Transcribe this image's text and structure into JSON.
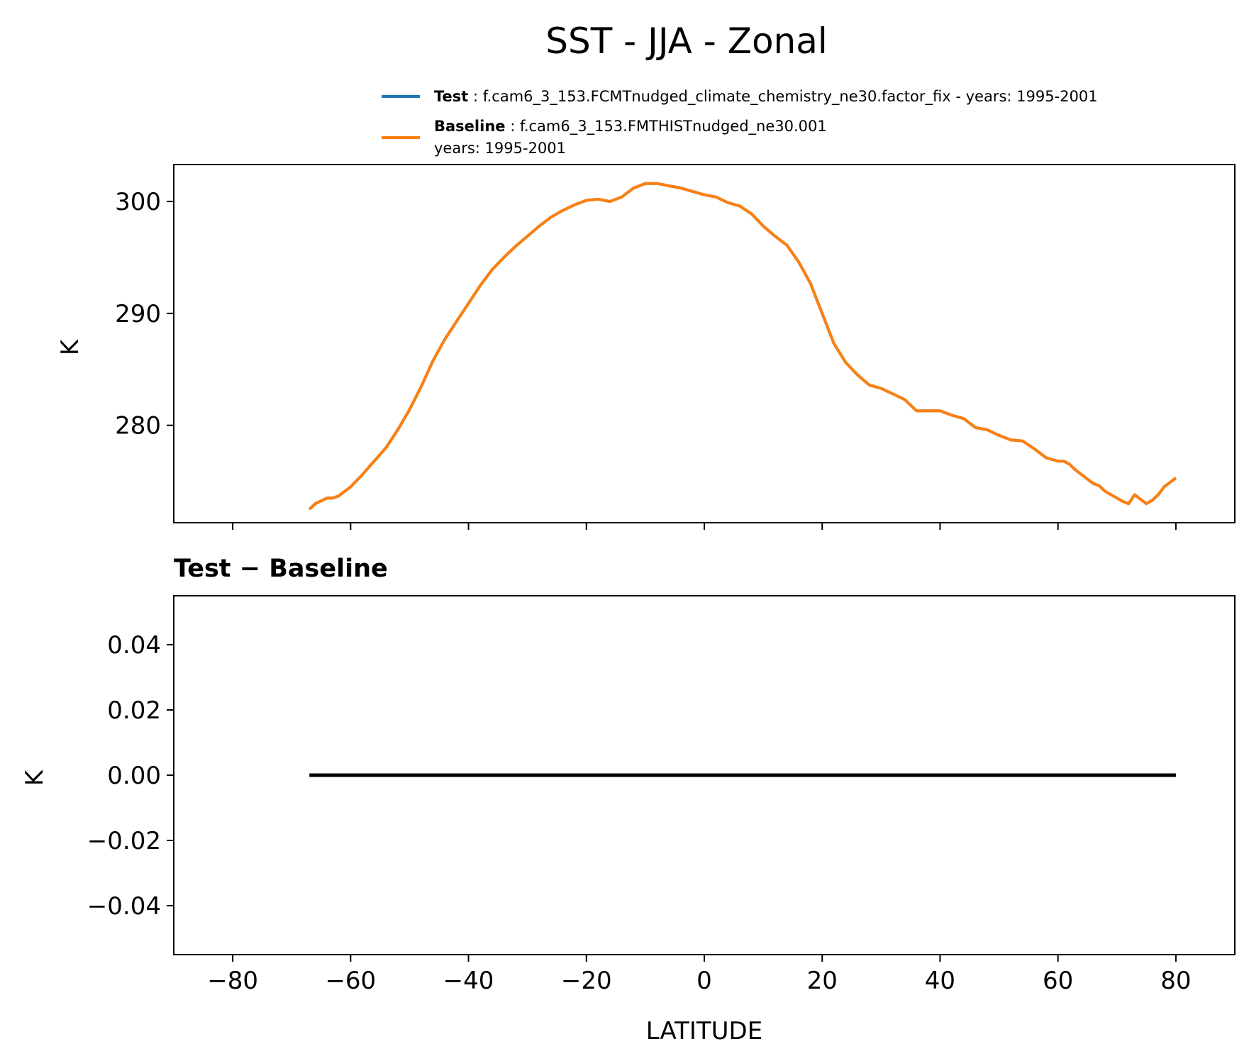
{
  "figure": {
    "title": "SST - JJA - Zonal"
  },
  "legend": {
    "test": {
      "label": "Test",
      "text": "f.cam6_3_153.FCMTnudged_climate_chemistry_ne30.factor_fix - years: 1995-2001",
      "color": "#1f77b4"
    },
    "baseline": {
      "label": "Baseline",
      "text_line1": "f.cam6_3_153.FMTHISTnudged_ne30.001",
      "text_line2": "years: 1995-2001",
      "color": "#ff7f0e"
    }
  },
  "chart_data": [
    {
      "type": "line",
      "title": "",
      "xlabel": "",
      "ylabel": "K",
      "xlim": [
        -90,
        90
      ],
      "ylim": [
        271.3,
        303.3
      ],
      "xticks": [
        -80,
        -60,
        -40,
        -20,
        0,
        20,
        40,
        60,
        80
      ],
      "yticks": [
        280,
        290,
        300
      ],
      "ytick_labels": [
        "280",
        "290",
        "300"
      ],
      "series": [
        {
          "name": "Test",
          "color": "#1f77b4",
          "x": [
            -67,
            -66,
            -64,
            -63,
            -62,
            -60,
            -58,
            -56,
            -54,
            -52,
            -50,
            -48,
            -46,
            -44,
            -42,
            -40,
            -38,
            -36,
            -34,
            -32,
            -30,
            -28,
            -26,
            -24,
            -22,
            -20,
            -18,
            -16,
            -14,
            -12,
            -10,
            -8,
            -6,
            -4,
            -2,
            0,
            2,
            4,
            6,
            8,
            10,
            12,
            14,
            16,
            18,
            20,
            22,
            24,
            26,
            28,
            30,
            32,
            34,
            36,
            38,
            40,
            42,
            44,
            46,
            48,
            50,
            52,
            54,
            56,
            58,
            60,
            61,
            62,
            63,
            64,
            65,
            66,
            67,
            68,
            69,
            70,
            71,
            72,
            73,
            74,
            75,
            76,
            77,
            78,
            79,
            80
          ],
          "y": [
            272.5,
            273.0,
            273.5,
            273.5,
            273.7,
            274.5,
            275.6,
            276.8,
            278.0,
            279.6,
            281.4,
            283.5,
            285.8,
            287.7,
            289.3,
            290.9,
            292.5,
            293.9,
            295.0,
            296.0,
            296.9,
            297.8,
            298.6,
            299.2,
            299.7,
            300.1,
            300.2,
            300.0,
            300.4,
            301.2,
            301.6,
            301.6,
            301.4,
            301.2,
            300.9,
            300.6,
            300.4,
            299.9,
            299.6,
            298.9,
            297.8,
            296.9,
            296.1,
            294.6,
            292.7,
            290.0,
            287.3,
            285.6,
            284.5,
            283.6,
            283.3,
            282.8,
            282.3,
            281.3,
            281.3,
            281.3,
            280.9,
            280.6,
            279.8,
            279.6,
            279.1,
            278.7,
            278.6,
            277.9,
            277.1,
            276.8,
            276.8,
            276.5,
            276.0,
            275.6,
            275.2,
            274.8,
            274.6,
            274.1,
            273.8,
            273.5,
            273.2,
            273.0,
            273.8,
            273.4,
            273.0,
            273.3,
            273.8,
            274.5,
            274.9,
            275.3
          ],
          "note": "identical to Baseline (drawn underneath)"
        },
        {
          "name": "Baseline",
          "color": "#ff7f0e",
          "x": [
            -67,
            -66,
            -64,
            -63,
            -62,
            -60,
            -58,
            -56,
            -54,
            -52,
            -50,
            -48,
            -46,
            -44,
            -42,
            -40,
            -38,
            -36,
            -34,
            -32,
            -30,
            -28,
            -26,
            -24,
            -22,
            -20,
            -18,
            -16,
            -14,
            -12,
            -10,
            -8,
            -6,
            -4,
            -2,
            0,
            2,
            4,
            6,
            8,
            10,
            12,
            14,
            16,
            18,
            20,
            22,
            24,
            26,
            28,
            30,
            32,
            34,
            36,
            38,
            40,
            42,
            44,
            46,
            48,
            50,
            52,
            54,
            56,
            58,
            60,
            61,
            62,
            63,
            64,
            65,
            66,
            67,
            68,
            69,
            70,
            71,
            72,
            73,
            74,
            75,
            76,
            77,
            78,
            79,
            80
          ],
          "y": [
            272.5,
            273.0,
            273.5,
            273.5,
            273.7,
            274.5,
            275.6,
            276.8,
            278.0,
            279.6,
            281.4,
            283.5,
            285.8,
            287.7,
            289.3,
            290.9,
            292.5,
            293.9,
            295.0,
            296.0,
            296.9,
            297.8,
            298.6,
            299.2,
            299.7,
            300.1,
            300.2,
            300.0,
            300.4,
            301.2,
            301.6,
            301.6,
            301.4,
            301.2,
            300.9,
            300.6,
            300.4,
            299.9,
            299.6,
            298.9,
            297.8,
            296.9,
            296.1,
            294.6,
            292.7,
            290.0,
            287.3,
            285.6,
            284.5,
            283.6,
            283.3,
            282.8,
            282.3,
            281.3,
            281.3,
            281.3,
            280.9,
            280.6,
            279.8,
            279.6,
            279.1,
            278.7,
            278.6,
            277.9,
            277.1,
            276.8,
            276.8,
            276.5,
            276.0,
            275.6,
            275.2,
            274.8,
            274.6,
            274.1,
            273.8,
            273.5,
            273.2,
            273.0,
            273.8,
            273.4,
            273.0,
            273.3,
            273.8,
            274.5,
            274.9,
            275.3
          ]
        }
      ]
    },
    {
      "type": "line",
      "title": "Test − Baseline",
      "xlabel": "LATITUDE",
      "ylabel": "K",
      "xlim": [
        -90,
        90
      ],
      "ylim": [
        -0.055,
        0.055
      ],
      "xticks": [
        -80,
        -60,
        -40,
        -20,
        0,
        20,
        40,
        60,
        80
      ],
      "xtick_labels": [
        "−80",
        "−60",
        "−40",
        "−20",
        "0",
        "20",
        "40",
        "60",
        "80"
      ],
      "yticks": [
        -0.04,
        -0.02,
        0.0,
        0.02,
        0.04
      ],
      "ytick_labels": [
        "−0.04",
        "−0.02",
        "0.00",
        "0.02",
        "0.04"
      ],
      "series": [
        {
          "name": "Test - Baseline",
          "color": "#000000",
          "x": [
            -67,
            80
          ],
          "y": [
            0.0,
            0.0
          ]
        }
      ]
    }
  ]
}
